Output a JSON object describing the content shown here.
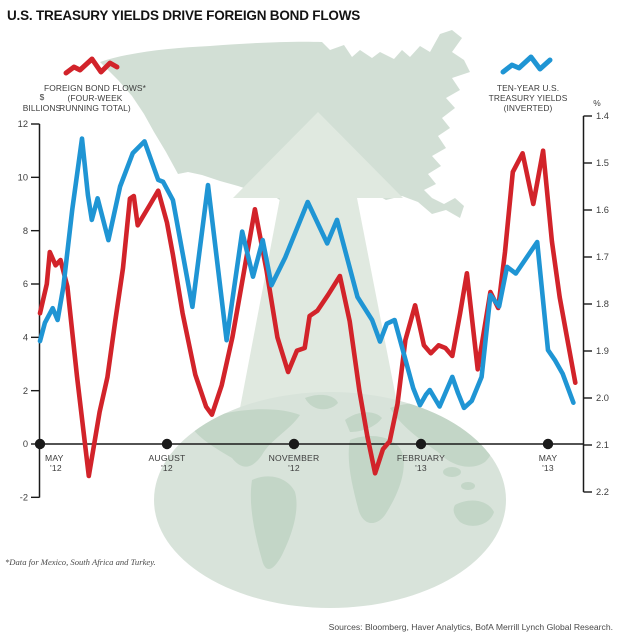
{
  "title": "U.S. TREASURY YIELDS DRIVE FOREIGN BOND FLOWS",
  "footnote": "*Data for Mexico, South Africa and Turkey.",
  "source": "Sources: Bloomberg, Haver Analytics, BofA Merrill Lynch Global Research.",
  "legends": {
    "bonds": {
      "lines": [
        "FOREIGN BOND FLOWS*",
        "(FOUR-WEEK",
        "RUNNING TOTAL)"
      ]
    },
    "yields": {
      "lines": [
        "TEN-YEAR U.S.",
        "TREASURY YIELDS",
        "(INVERTED)"
      ]
    }
  },
  "axes": {
    "left": {
      "unit_top": "$",
      "unit_bottom": "BILLIONS",
      "ticks": [
        "12",
        "10",
        "8",
        "6",
        "4",
        "2",
        "0",
        "-2"
      ]
    },
    "right": {
      "unit": "%",
      "ticks": [
        "1.4",
        "1.5",
        "1.6",
        "1.7",
        "1.8",
        "1.9",
        "2.0",
        "2.1",
        "2.2"
      ]
    },
    "x": {
      "labels": [
        {
          "top": "MAY",
          "bottom": "'12",
          "week": 0
        },
        {
          "top": "AUGUST",
          "bottom": "'12",
          "week": 13
        },
        {
          "top": "NOVEMBER",
          "bottom": "'12",
          "week": 26
        },
        {
          "top": "FEBRUARY",
          "bottom": "'13",
          "week": 39
        },
        {
          "top": "MAY",
          "bottom": "'13",
          "week": 52
        }
      ]
    }
  },
  "colors": {
    "red": "#d2232a",
    "blue": "#1f95d4",
    "axis": "#1a1a1a",
    "map": "#d2dfd5",
    "arrow": "#e0e9e0",
    "globe": "#d8e3da",
    "continents": "#c3d6c7"
  },
  "chart_data": {
    "type": "line",
    "title": "U.S. Treasury yields drive foreign bond flows",
    "x_axis": {
      "unit": "weeks since May 2012",
      "tick_weeks": [
        0,
        13,
        26,
        39,
        52
      ],
      "tick_labels": [
        "MAY '12",
        "AUGUST '12",
        "NOVEMBER '12",
        "FEBRUARY '13",
        "MAY '13"
      ]
    },
    "left_axis": {
      "label": "$ BILLIONS",
      "range": [
        -2,
        12
      ],
      "ticks": [
        12,
        10,
        8,
        6,
        4,
        2,
        0,
        -2
      ]
    },
    "right_axis": {
      "label": "%",
      "range": [
        1.4,
        2.2
      ],
      "inverted": true,
      "ticks": [
        1.4,
        1.5,
        1.6,
        1.7,
        1.8,
        1.9,
        2.0,
        2.1,
        2.2
      ]
    },
    "grid": false,
    "legend_position": "top",
    "series": [
      {
        "name": "FOREIGN BOND FLOWS* (FOUR-WEEK RUNNING TOTAL)",
        "axis": "left",
        "unit": "$ billions",
        "color": "#d2232a",
        "points": [
          [
            0,
            4.9
          ],
          [
            0.7,
            6.0
          ],
          [
            1.0,
            7.2
          ],
          [
            1.6,
            6.7
          ],
          [
            2.1,
            6.9
          ],
          [
            2.8,
            5.9
          ],
          [
            3.8,
            2.5
          ],
          [
            5.0,
            -1.2
          ],
          [
            6.1,
            1.2
          ],
          [
            6.9,
            2.5
          ],
          [
            7.7,
            4.6
          ],
          [
            8.5,
            6.6
          ],
          [
            9.2,
            9.2
          ],
          [
            9.6,
            9.3
          ],
          [
            10.0,
            8.2
          ],
          [
            11.3,
            9.0
          ],
          [
            12.1,
            9.5
          ],
          [
            13.0,
            8.3
          ],
          [
            13.6,
            7.1
          ],
          [
            14.6,
            4.9
          ],
          [
            15.9,
            2.6
          ],
          [
            17.0,
            1.4
          ],
          [
            17.6,
            1.1
          ],
          [
            18.6,
            2.2
          ],
          [
            19.7,
            4.0
          ],
          [
            20.8,
            6.3
          ],
          [
            22.0,
            8.8
          ],
          [
            23.2,
            6.5
          ],
          [
            24.3,
            4.0
          ],
          [
            25.4,
            2.7
          ],
          [
            26.3,
            3.5
          ],
          [
            27.1,
            3.6
          ],
          [
            27.6,
            4.8
          ],
          [
            28.4,
            5.0
          ],
          [
            29.5,
            5.6
          ],
          [
            30.7,
            6.3
          ],
          [
            31.7,
            4.6
          ],
          [
            32.7,
            2.0
          ],
          [
            33.5,
            0.3
          ],
          [
            34.3,
            -1.1
          ],
          [
            35.1,
            -0.2
          ],
          [
            35.8,
            0.1
          ],
          [
            36.6,
            1.5
          ],
          [
            37.4,
            3.9
          ],
          [
            38.4,
            5.2
          ],
          [
            39.3,
            3.7
          ],
          [
            40.0,
            3.4
          ],
          [
            40.8,
            3.7
          ],
          [
            41.5,
            3.6
          ],
          [
            42.2,
            3.3
          ],
          [
            43.0,
            4.9
          ],
          [
            43.7,
            6.4
          ],
          [
            44.8,
            2.8
          ],
          [
            46.1,
            5.7
          ],
          [
            46.9,
            5.1
          ],
          [
            47.6,
            7.2
          ],
          [
            48.4,
            10.2
          ],
          [
            49.4,
            10.9
          ],
          [
            50.5,
            9.0
          ],
          [
            51.5,
            11.0
          ],
          [
            52.4,
            7.6
          ],
          [
            53.2,
            5.5
          ],
          [
            53.9,
            4.1
          ],
          [
            54.8,
            2.3
          ]
        ]
      },
      {
        "name": "TEN-YEAR U.S. TREASURY YIELDS (INVERTED)",
        "axis": "right",
        "unit": "%",
        "color": "#1f95d4",
        "points": [
          [
            0,
            1.879
          ],
          [
            0.5,
            1.84
          ],
          [
            1.3,
            1.809
          ],
          [
            1.8,
            1.834
          ],
          [
            2.4,
            1.763
          ],
          [
            3.3,
            1.6
          ],
          [
            4.3,
            1.448
          ],
          [
            4.9,
            1.568
          ],
          [
            5.3,
            1.621
          ],
          [
            5.9,
            1.575
          ],
          [
            7.0,
            1.664
          ],
          [
            8.2,
            1.55
          ],
          [
            9.5,
            1.479
          ],
          [
            10.7,
            1.454
          ],
          [
            12.1,
            1.536
          ],
          [
            12.6,
            1.54
          ],
          [
            13.6,
            1.579
          ],
          [
            15.6,
            1.806
          ],
          [
            17.2,
            1.547
          ],
          [
            19.1,
            1.877
          ],
          [
            20.7,
            1.646
          ],
          [
            21.8,
            1.742
          ],
          [
            22.8,
            1.664
          ],
          [
            23.7,
            1.76
          ],
          [
            25.1,
            1.701
          ],
          [
            27.4,
            1.583
          ],
          [
            29.4,
            1.671
          ],
          [
            30.4,
            1.621
          ],
          [
            32.5,
            1.785
          ],
          [
            34.0,
            1.834
          ],
          [
            34.8,
            1.88
          ],
          [
            35.5,
            1.842
          ],
          [
            36.3,
            1.834
          ],
          [
            37.6,
            1.933
          ],
          [
            38.2,
            1.979
          ],
          [
            38.9,
            2.015
          ],
          [
            39.5,
            1.993
          ],
          [
            39.9,
            1.983
          ],
          [
            40.9,
            2.018
          ],
          [
            42.2,
            1.955
          ],
          [
            42.8,
            1.99
          ],
          [
            43.4,
            2.021
          ],
          [
            44.2,
            2.006
          ],
          [
            45.2,
            1.955
          ],
          [
            46.1,
            1.781
          ],
          [
            47.0,
            1.805
          ],
          [
            47.8,
            1.721
          ],
          [
            48.7,
            1.735
          ],
          [
            50.9,
            1.668
          ],
          [
            52.0,
            1.898
          ],
          [
            52.7,
            1.919
          ],
          [
            53.5,
            1.948
          ],
          [
            54.6,
            2.01
          ]
        ]
      }
    ]
  }
}
